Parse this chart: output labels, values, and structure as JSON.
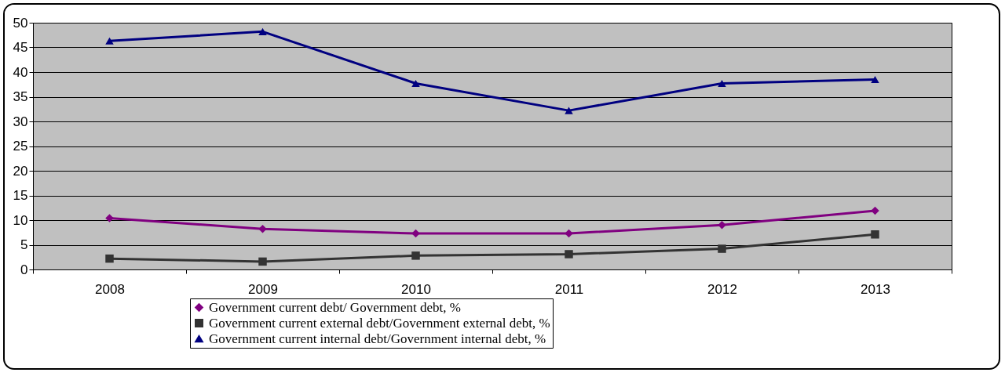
{
  "chart_data": {
    "type": "line",
    "categories": [
      "2008",
      "2009",
      "2010",
      "2011",
      "2012",
      "2013"
    ],
    "ylim": [
      0,
      50
    ],
    "yticks": [
      0,
      5,
      10,
      15,
      20,
      25,
      30,
      35,
      40,
      45,
      50
    ],
    "grid": "y",
    "legend": "bottom",
    "series": [
      {
        "name": "Government current debt/ Government debt, %",
        "color": "#800080",
        "marker": "diamond",
        "values": [
          10.4,
          8.2,
          7.3,
          7.3,
          9.0,
          11.9
        ]
      },
      {
        "name": "Government current external debt/Government external debt, %",
        "color": "#333333",
        "marker": "square",
        "values": [
          2.2,
          1.6,
          2.8,
          3.1,
          4.2,
          7.1
        ]
      },
      {
        "name": "Government current internal debt/Government internal debt, %",
        "color": "#000080",
        "marker": "triangle",
        "values": [
          46.3,
          48.2,
          37.7,
          32.2,
          37.7,
          38.5
        ]
      }
    ]
  }
}
